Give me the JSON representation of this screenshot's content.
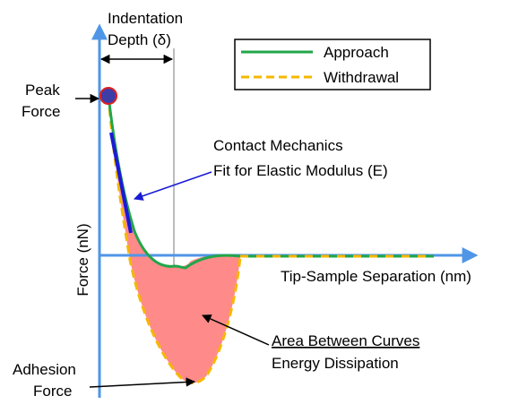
{
  "labels": {
    "indentation_line1": "Indentation",
    "indentation_line2": "Depth (δ)",
    "peak_line1": "Peak",
    "peak_line2": "Force",
    "contact_line1": "Contact Mechanics",
    "contact_line2": "Fit for Elastic Modulus (E)",
    "y_axis": "Force (nN)",
    "x_axis": "Tip-Sample Separation (nm)",
    "area_line1": "Area Between Curves",
    "area_line2": "Energy Dissipation",
    "adhesion_line1": "Adhesion",
    "adhesion_line2": "Force"
  },
  "legend": {
    "approach": "Approach",
    "withdrawal": "Withdrawal"
  },
  "colors": {
    "axis": "#4f96e6",
    "approach": "#22a64a",
    "withdrawal": "#f5b800",
    "fill": "#ff8a8a",
    "fit_line": "#1a1ad6",
    "peak_marker_fill": "#3d3da8",
    "peak_marker_stroke": "#e01f1f"
  }
}
